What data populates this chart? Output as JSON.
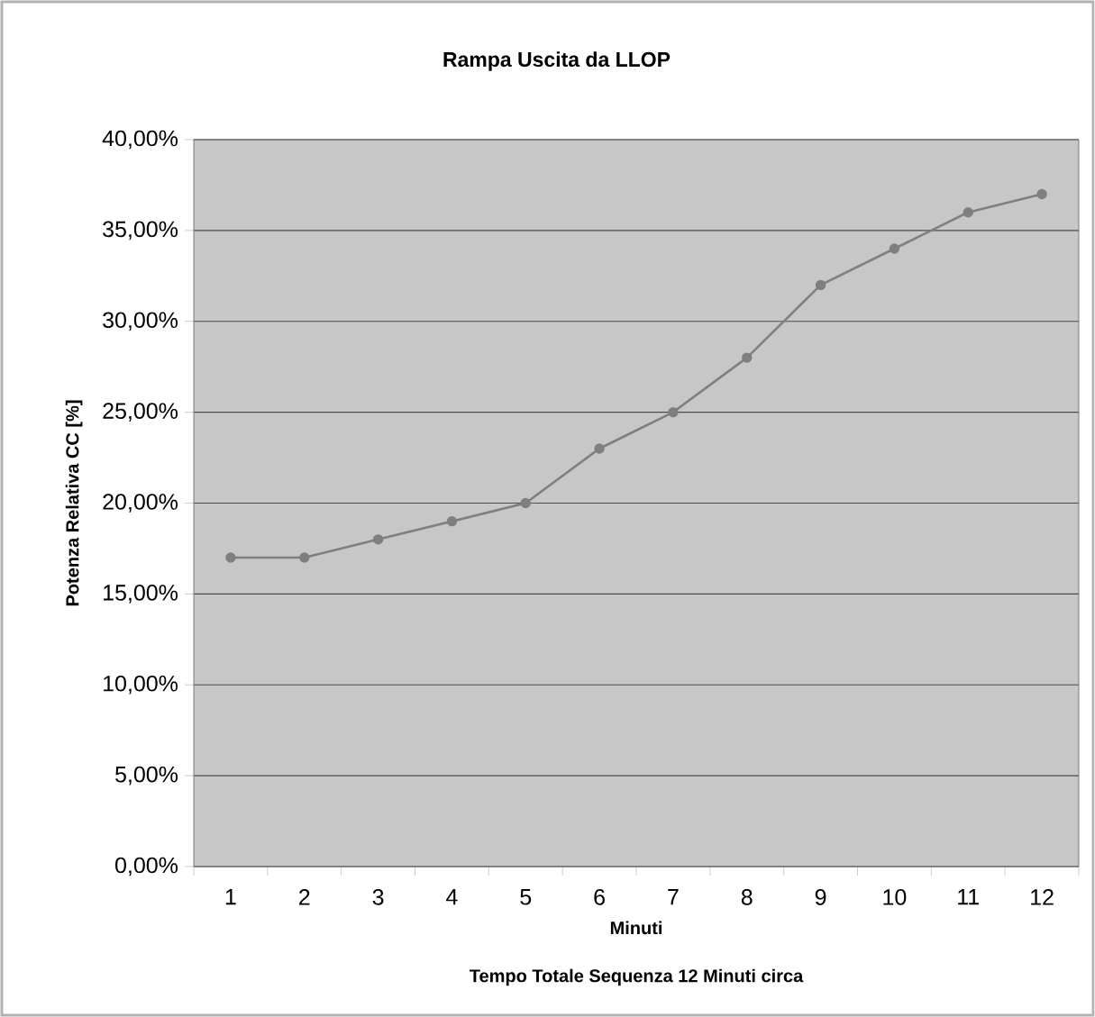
{
  "chart_data": {
    "type": "line",
    "title": "Rampa Uscita da LLOP",
    "xlabel": "Minuti",
    "ylabel": "Potenza Relativa CC [%]",
    "annotations": [
      "Tempo Totale Sequenza 12 Minuti circa"
    ],
    "categories": [
      "1",
      "2",
      "3",
      "4",
      "5",
      "6",
      "7",
      "8",
      "9",
      "10",
      "11",
      "12"
    ],
    "series": [
      {
        "color": "#7f7f7f",
        "values": [
          17,
          17,
          18,
          19,
          20,
          23,
          25,
          28,
          32,
          34,
          36,
          37
        ]
      }
    ],
    "ylim": [
      0,
      40
    ],
    "yticks": [
      {
        "value": 0,
        "label": "0,00%"
      },
      {
        "value": 5,
        "label": "5,00%"
      },
      {
        "value": 10,
        "label": "10,00%"
      },
      {
        "value": 15,
        "label": "15,00%"
      },
      {
        "value": 20,
        "label": "20,00%"
      },
      {
        "value": 25,
        "label": "25,00%"
      },
      {
        "value": 30,
        "label": "30,00%"
      },
      {
        "value": 35,
        "label": "35,00%"
      },
      {
        "value": 40,
        "label": "40,00%"
      }
    ],
    "grid": "y",
    "marker": "circle",
    "line_style": "solid"
  }
}
